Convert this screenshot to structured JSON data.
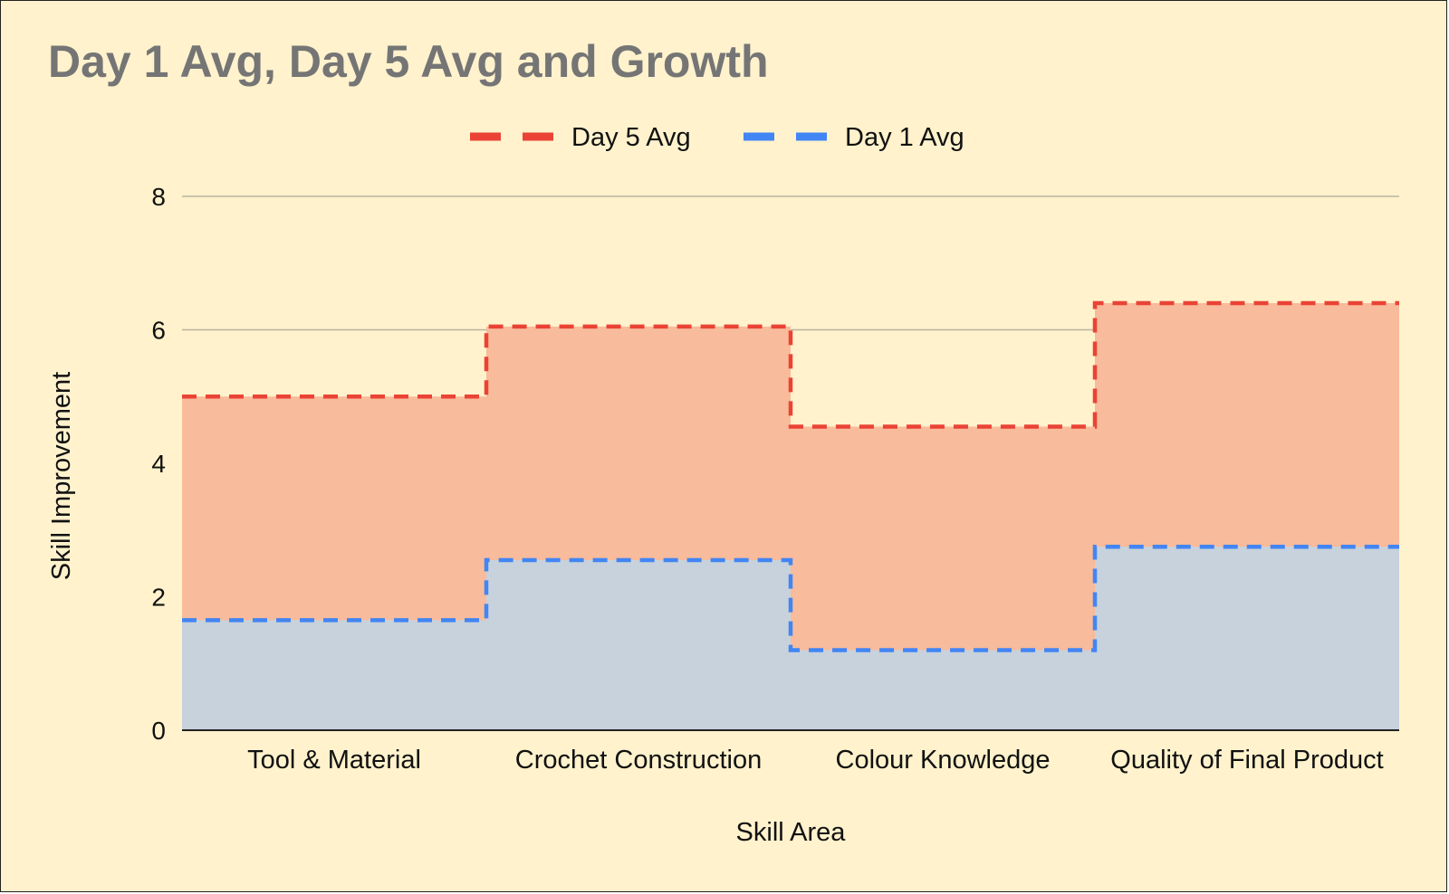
{
  "chart_data": {
    "type": "area",
    "title": "Day 1 Avg, Day 5 Avg and Growth",
    "xlabel": "Skill Area",
    "ylabel": "Skill Improvement",
    "categories": [
      "Tool & Material",
      "Crochet Construction",
      "Colour Knowledge",
      "Quality of Final Product"
    ],
    "series": [
      {
        "name": "Day 5 Avg",
        "values": [
          5.0,
          6.05,
          4.55,
          6.4
        ],
        "color": "#ea4335",
        "fill": "#f8bb9b"
      },
      {
        "name": "Day 1 Avg",
        "values": [
          1.65,
          2.55,
          1.2,
          2.75
        ],
        "color": "#4285f4",
        "fill": "#c7d2dc"
      }
    ],
    "ylim": [
      0,
      8
    ],
    "yticks": [
      "0",
      "2",
      "4",
      "6",
      "8"
    ],
    "grid": true,
    "legend": "top",
    "step": true,
    "background": "#fff2cc",
    "title_color": "#757575"
  }
}
